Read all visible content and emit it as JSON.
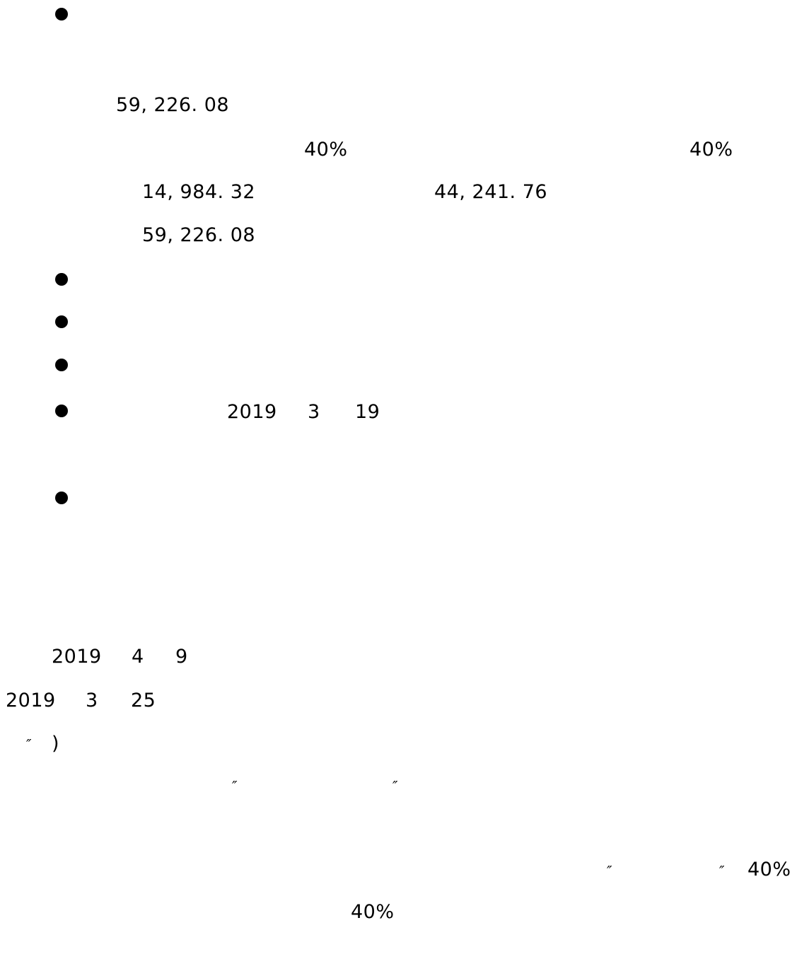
{
  "doc": {
    "line1_amount": "59, 226. 08",
    "pct_a": "40%",
    "pct_b": "40%",
    "amount_a": "14, 984. 32",
    "amount_b": "44, 241. 76",
    "amount_total": "59, 226. 08",
    "bullet_date": {
      "year": "2019",
      "month": "3",
      "day": "19"
    },
    "date1": {
      "year": "2019",
      "month": "4",
      "day": "9"
    },
    "date2": {
      "year": "2019",
      "month": "3",
      "day": "25"
    },
    "close_quote": "″",
    "close_paren": ")",
    "open_quote": "″",
    "close_quote2": "″",
    "quote_open3": "″",
    "quote_close3": "″",
    "pct_c": "40%",
    "pct_d": "40%"
  }
}
